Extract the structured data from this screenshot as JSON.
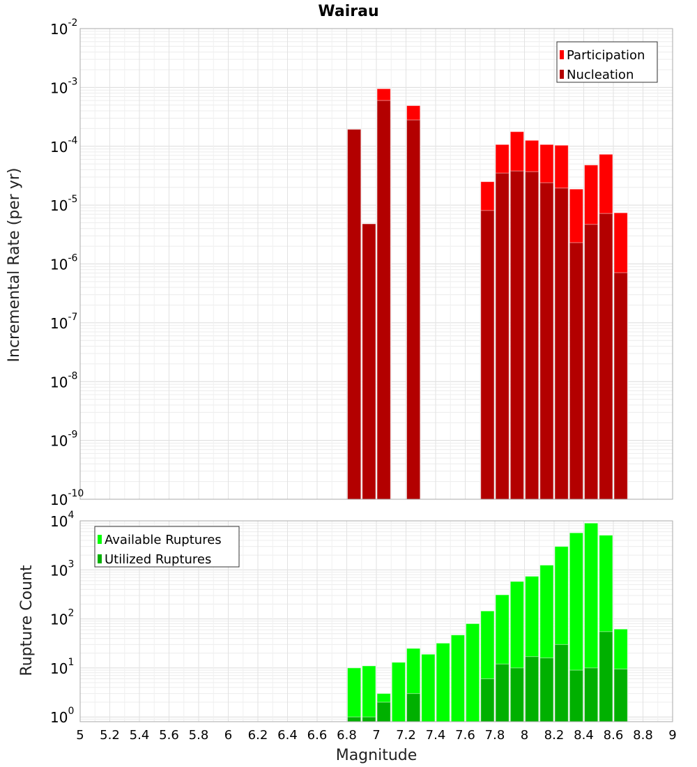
{
  "chart_data": [
    {
      "type": "bar",
      "title": "Wairau",
      "xlabel": "",
      "ylabel": "Incremental Rate (per yr)",
      "yscale": "log",
      "xlim": [
        5,
        9
      ],
      "ylim": [
        1e-10,
        0.01
      ],
      "y_tick_exponents": [
        -2,
        -3,
        -4,
        -5,
        -6,
        -7,
        -8,
        -9,
        -10
      ],
      "grid": true,
      "legend_position": "top-right",
      "bin_width": 0.1,
      "x": [
        6.85,
        6.95,
        7.05,
        7.25,
        7.75,
        7.85,
        7.95,
        8.05,
        8.15,
        8.25,
        8.35,
        8.45,
        8.55,
        8.65
      ],
      "series": [
        {
          "name": "Participation",
          "color": "#ff0000",
          "values": [
            0.000194,
            4.8e-06,
            0.00095,
            0.00049,
            2.5e-05,
            0.000107,
            0.000177,
            0.000126,
            0.000107,
            0.000104,
            1.87e-05,
            4.8e-05,
            7.3e-05,
            7.4e-06
          ]
        },
        {
          "name": "Nucleation",
          "color": "#b30000",
          "values": [
            0.000194,
            4.8e-06,
            0.0006,
            0.00028,
            8.1e-06,
            3.5e-05,
            3.8e-05,
            3.7e-05,
            2.4e-05,
            1.95e-05,
            2.3e-06,
            4.7e-06,
            7.2e-06,
            7.1e-07
          ]
        }
      ]
    },
    {
      "type": "bar",
      "title": "",
      "xlabel": "Magnitude",
      "ylabel": "Rupture Count",
      "yscale": "log",
      "xlim": [
        5,
        9
      ],
      "ylim": [
        0.8,
        10000
      ],
      "y_tick_exponents": [
        4,
        3,
        2,
        1,
        0
      ],
      "x_ticks": [
        "5",
        "5.2",
        "5.4",
        "5.6",
        "5.8",
        "6",
        "6.2",
        "6.4",
        "6.6",
        "6.8",
        "7",
        "7.2",
        "7.4",
        "7.6",
        "7.8",
        "8",
        "8.2",
        "8.4",
        "8.6",
        "8.8",
        "9"
      ],
      "grid": true,
      "legend_position": "top-left",
      "bin_width": 0.1,
      "x": [
        6.85,
        6.95,
        7.05,
        7.15,
        7.25,
        7.35,
        7.45,
        7.55,
        7.65,
        7.75,
        7.85,
        7.95,
        8.05,
        8.15,
        8.25,
        8.35,
        8.45,
        8.55,
        8.65
      ],
      "series": [
        {
          "name": "Available Ruptures",
          "color": "#00ff00",
          "values": [
            10,
            11,
            3,
            13,
            25,
            19,
            32,
            47,
            80,
            145,
            310,
            580,
            740,
            1250,
            3000,
            5700,
            9000,
            5100,
            62
          ]
        },
        {
          "name": "Utilized Ruptures",
          "color": "#00b000",
          "values": [
            1,
            1,
            2,
            0,
            3,
            0,
            0,
            0,
            0,
            6,
            12,
            10,
            17,
            16,
            30,
            9,
            10,
            55,
            9.5
          ]
        }
      ]
    }
  ]
}
